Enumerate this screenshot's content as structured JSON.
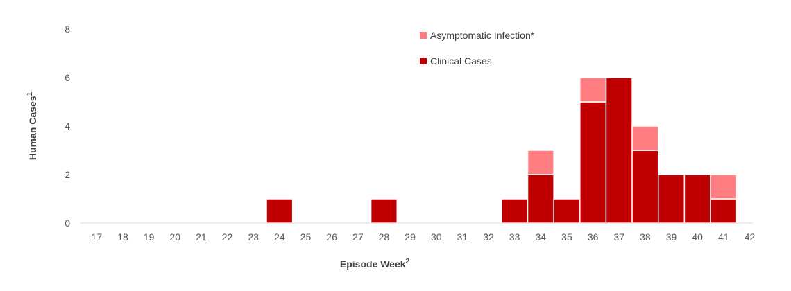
{
  "chart_data": {
    "type": "bar",
    "stacked": true,
    "categories": [
      "17",
      "18",
      "19",
      "20",
      "21",
      "22",
      "23",
      "24",
      "25",
      "26",
      "27",
      "28",
      "29",
      "30",
      "31",
      "32",
      "33",
      "34",
      "35",
      "36",
      "37",
      "38",
      "39",
      "40",
      "41",
      "42"
    ],
    "series": [
      {
        "name": "Clinical Cases",
        "color": "#c00000",
        "values": [
          0,
          0,
          0,
          0,
          0,
          0,
          0,
          1,
          0,
          0,
          0,
          1,
          0,
          0,
          0,
          0,
          1,
          2,
          1,
          5,
          6,
          3,
          2,
          2,
          1,
          0
        ]
      },
      {
        "name": "Asymptomatic Infection*",
        "color": "#ff7c80",
        "values": [
          0,
          0,
          0,
          0,
          0,
          0,
          0,
          0,
          0,
          0,
          0,
          0,
          0,
          0,
          0,
          0,
          0,
          1,
          0,
          1,
          0,
          1,
          0,
          0,
          1,
          0
        ]
      }
    ],
    "legend_order": [
      1,
      0
    ],
    "xlabel": "Episode Week",
    "xlabel_sup": "2",
    "ylabel": "Human Cases",
    "ylabel_sup": "1",
    "ylim": [
      0,
      8
    ],
    "yticks": [
      0,
      2,
      4,
      6,
      8
    ],
    "grid": false,
    "legend_position": "top-right"
  }
}
